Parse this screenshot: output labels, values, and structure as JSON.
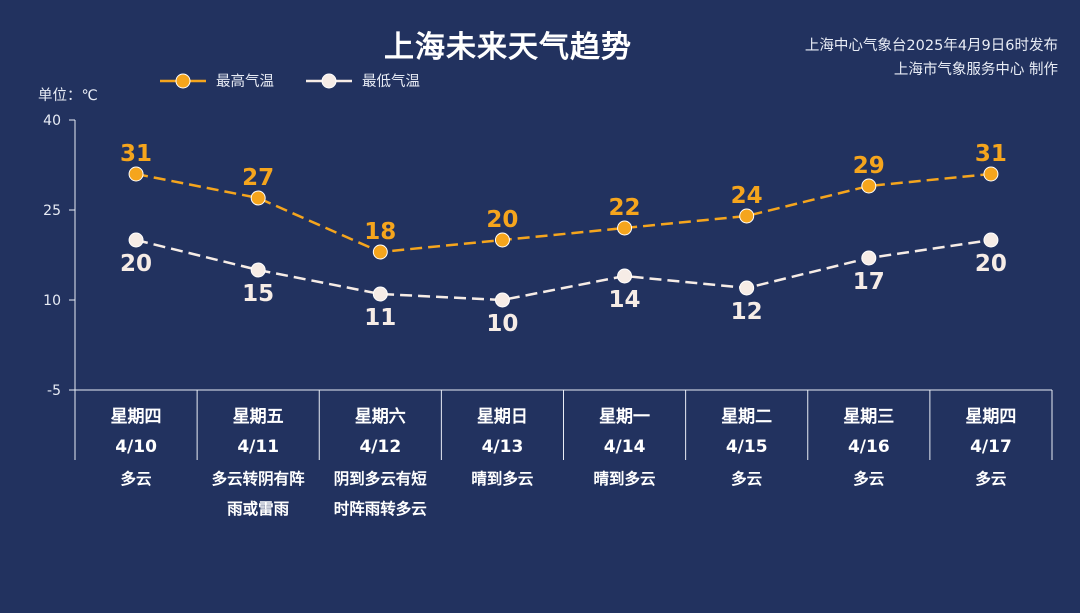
{
  "page": {
    "title": "上海未来天气趋势",
    "source_line1": "上海中心气象台2025年4月9日6时发布",
    "source_line2": "上海市气象服务中心 制作",
    "unit_label": "单位：℃"
  },
  "colors": {
    "background": "#22325f",
    "high": "#f5a51d",
    "low": "#f6ece6",
    "axis": "#e8ecf5"
  },
  "chart_data": {
    "type": "line",
    "title": "上海未来天气趋势",
    "ylabel": "单位：℃",
    "ylim": [
      -5,
      40
    ],
    "yticks": [
      -5,
      10,
      25,
      40
    ],
    "legend_position": "top-left",
    "categories": [
      {
        "weekday": "星期四",
        "date": "4/10",
        "weather": [
          "多云"
        ]
      },
      {
        "weekday": "星期五",
        "date": "4/11",
        "weather": [
          "多云转阴有阵",
          "雨或雷雨"
        ]
      },
      {
        "weekday": "星期六",
        "date": "4/12",
        "weather": [
          "阴到多云有短",
          "时阵雨转多云"
        ]
      },
      {
        "weekday": "星期日",
        "date": "4/13",
        "weather": [
          "晴到多云"
        ]
      },
      {
        "weekday": "星期一",
        "date": "4/14",
        "weather": [
          "晴到多云"
        ]
      },
      {
        "weekday": "星期二",
        "date": "4/15",
        "weather": [
          "多云"
        ]
      },
      {
        "weekday": "星期三",
        "date": "4/16",
        "weather": [
          "多云"
        ]
      },
      {
        "weekday": "星期四",
        "date": "4/17",
        "weather": [
          "多云"
        ]
      }
    ],
    "series": [
      {
        "name": "最高气温",
        "values": [
          31,
          27,
          18,
          20,
          22,
          24,
          29,
          31
        ]
      },
      {
        "name": "最低气温",
        "values": [
          20,
          15,
          11,
          10,
          14,
          12,
          17,
          20
        ]
      }
    ]
  }
}
